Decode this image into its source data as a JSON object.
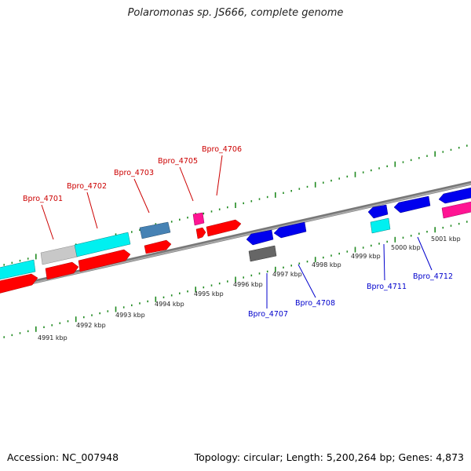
{
  "title": "Polaromonas sp. JS666, complete genome",
  "accession": "Accession: NC_007948",
  "stats": "Topology: circular; Length: 5,200,264 bp; Genes: 4,873",
  "colors": {
    "backbone": "#888888",
    "forward": "#ff0000",
    "reverse": "#0000ee",
    "cyan": "#00ffff",
    "grey": "#c0c0c0",
    "darkgrey": "#666666",
    "steelblue": "#4682b4",
    "magenta": "#ff1493",
    "tick": "#228b22"
  },
  "ruler_labels": [
    "4991 kbp",
    "4992 kbp",
    "4993 kbp",
    "4994 kbp",
    "4995 kbp",
    "4996 kbp",
    "4997 kbp",
    "4998 kbp",
    "4999 kbp",
    "5000 kbp",
    "5001 kbp"
  ],
  "gene_labels_top": [
    "Bpro_4701",
    "Bpro_4702",
    "Bpro_4703",
    "Bpro_4705",
    "Bpro_4706"
  ],
  "gene_labels_bottom": [
    "Bpro_4707",
    "Bpro_4708",
    "Bpro_4711",
    "Bpro_4712"
  ]
}
